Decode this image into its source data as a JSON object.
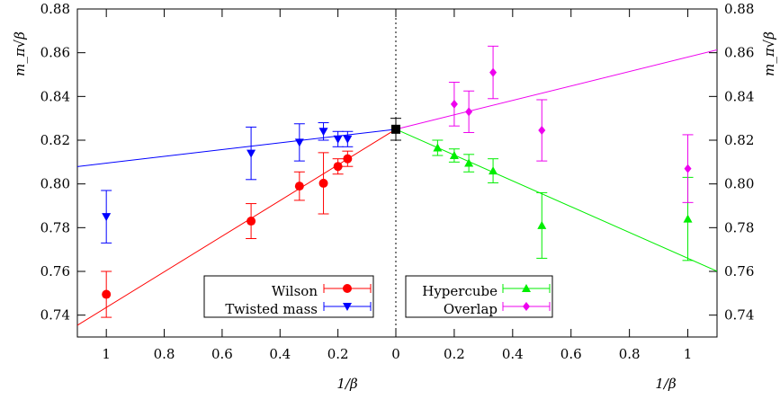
{
  "chart_data": {
    "type": "scatter",
    "ylabel_left": "m_π√β",
    "ylabel_right": "m_π√β",
    "xlabel_left": "1/β",
    "xlabel_right": "1/β",
    "ylim": [
      0.73,
      0.88
    ],
    "yticks": [
      0.74,
      0.76,
      0.78,
      0.8,
      0.82,
      0.84,
      0.86,
      0.88
    ],
    "ytick_labels": [
      "0.74",
      "0.76",
      "0.78",
      "0.80",
      "0.82",
      "0.84",
      "0.86",
      "0.88"
    ],
    "left_panel": {
      "xlim": [
        1.1,
        0
      ],
      "xticks": [
        1,
        0.8,
        0.6,
        0.4,
        0.2,
        0
      ],
      "xtick_labels": [
        "1",
        "0.8",
        "0.6",
        "0.4",
        "0.2",
        "0"
      ]
    },
    "right_panel": {
      "xlim": [
        0,
        1.1
      ],
      "xticks": [
        0.2,
        0.4,
        0.6,
        0.8,
        1
      ],
      "xtick_labels": [
        "0.2",
        "0.4",
        "0.6",
        "0.8",
        "1"
      ]
    },
    "continuum": {
      "x": 0,
      "y": 0.825,
      "err": 0.005,
      "color": "#000000",
      "marker": "square"
    },
    "series": [
      {
        "name": "Wilson",
        "panel": "left",
        "color": "#ff0000",
        "marker": "circle",
        "points": [
          {
            "x": 1.0,
            "y": 0.7495,
            "err": 0.0105
          },
          {
            "x": 0.5,
            "y": 0.783,
            "err": 0.008
          },
          {
            "x": 0.333,
            "y": 0.799,
            "err": 0.0065
          },
          {
            "x": 0.25,
            "y": 0.8003,
            "err": 0.014
          },
          {
            "x": 0.2,
            "y": 0.808,
            "err": 0.0035
          },
          {
            "x": 0.1667,
            "y": 0.8115,
            "err": 0.0035
          }
        ],
        "fit": {
          "intercept": 0.825,
          "slope": -0.0815
        }
      },
      {
        "name": "Twisted mass",
        "panel": "left",
        "color": "#0000ff",
        "marker": "triangle-down",
        "points": [
          {
            "x": 1.0,
            "y": 0.785,
            "err": 0.012
          },
          {
            "x": 0.5,
            "y": 0.814,
            "err": 0.012
          },
          {
            "x": 0.333,
            "y": 0.819,
            "err": 0.0085
          },
          {
            "x": 0.25,
            "y": 0.824,
            "err": 0.004
          },
          {
            "x": 0.2,
            "y": 0.8205,
            "err": 0.0035
          },
          {
            "x": 0.1667,
            "y": 0.8205,
            "err": 0.0035
          }
        ],
        "fit": {
          "intercept": 0.825,
          "slope": -0.0155
        }
      },
      {
        "name": "Hypercube",
        "panel": "right",
        "color": "#00ee00",
        "marker": "triangle-up",
        "points": [
          {
            "x": 0.1429,
            "y": 0.8165,
            "err": 0.0035
          },
          {
            "x": 0.2,
            "y": 0.813,
            "err": 0.003
          },
          {
            "x": 0.25,
            "y": 0.8095,
            "err": 0.004
          },
          {
            "x": 0.333,
            "y": 0.806,
            "err": 0.0055
          },
          {
            "x": 0.5,
            "y": 0.781,
            "err": 0.015
          },
          {
            "x": 1.0,
            "y": 0.784,
            "err": 0.019
          }
        ],
        "fit": {
          "intercept": 0.825,
          "slope": -0.059
        }
      },
      {
        "name": "Overlap",
        "panel": "right",
        "color": "#ee00ee",
        "marker": "diamond",
        "points": [
          {
            "x": 0.2,
            "y": 0.8365,
            "err": 0.01
          },
          {
            "x": 0.25,
            "y": 0.833,
            "err": 0.0095
          },
          {
            "x": 0.333,
            "y": 0.851,
            "err": 0.012
          },
          {
            "x": 0.5,
            "y": 0.8245,
            "err": 0.014
          },
          {
            "x": 1.0,
            "y": 0.807,
            "err": 0.0155
          }
        ],
        "fit": {
          "intercept": 0.825,
          "slope": 0.033
        }
      }
    ],
    "legend_left": [
      "Wilson",
      "Twisted mass"
    ],
    "legend_right": [
      "Hypercube",
      "Overlap"
    ]
  }
}
